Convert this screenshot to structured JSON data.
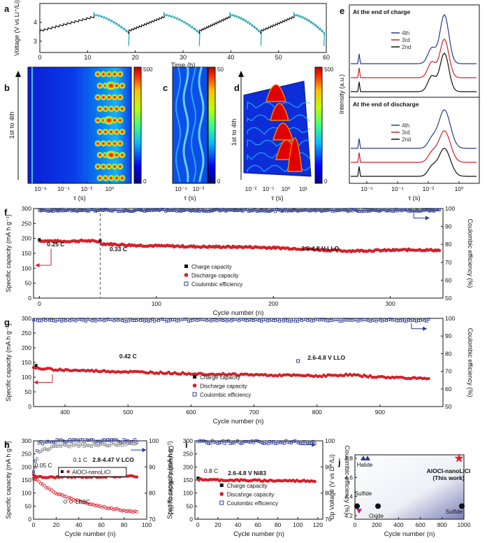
{
  "panel_letters": [
    "a",
    "b",
    "c",
    "d",
    "e",
    "f",
    "g",
    "h",
    "i",
    "j"
  ],
  "chart_data": [
    {
      "panel": "a",
      "type": "line",
      "xlabel": "Time (h)",
      "ylabel": "Voltage (V vs Li⁺/Li)",
      "xlim": [
        0,
        60
      ],
      "ylim": [
        2.4,
        5.0
      ],
      "xticks": [
        "0",
        "10",
        "20",
        "30",
        "40",
        "50",
        "60"
      ],
      "yticks": [
        "3",
        "4"
      ],
      "charge_color": "#111111",
      "discharge_color": "#1aa3b3",
      "cycles": [
        [
          0,
          11.3,
          18.6
        ],
        [
          18.6,
          26,
          33.4
        ],
        [
          33.4,
          39.8,
          46.3
        ],
        [
          46.3,
          53.2,
          59.5
        ]
      ]
    },
    {
      "panel": "b",
      "type": "heatmap",
      "xlabel": "τ (s)",
      "ylabel": "1st to 4th",
      "xticks": [
        "10⁻⁶",
        "10⁻⁴",
        "10⁻²",
        "10⁰"
      ],
      "colorbar_max": "500",
      "colorbar_min": "0"
    },
    {
      "panel": "c",
      "type": "heatmap",
      "xlabel": "τ (s)",
      "xticks": [
        "10⁻⁴",
        "10⁻³"
      ],
      "colorbar_max": "50",
      "colorbar_min": "0"
    },
    {
      "panel": "d",
      "type": "area",
      "xlabel": "τ (s)",
      "ylabel": "1st to 4th",
      "xticks": [
        "10⁻²",
        "10⁻¹",
        "10⁰",
        "10¹"
      ],
      "colorbar_max": "500",
      "colorbar_min": "0"
    },
    {
      "panel": "e",
      "type": "line",
      "xlabel": "τ (s)",
      "ylabel": "Intensity (a.u.)",
      "xticks": [
        "10⁻⁶",
        "10⁻⁴",
        "10⁻²",
        "10⁰"
      ],
      "subpanels": [
        {
          "title": "At the end of charge",
          "series": [
            {
              "name": "4th",
              "color": "#2b3a8c"
            },
            {
              "name": "3rd",
              "color": "#d0202a"
            },
            {
              "name": "2nd",
              "color": "#111111"
            }
          ]
        },
        {
          "title": "At the end of discharge",
          "series": [
            {
              "name": "4th",
              "color": "#2b3a8c"
            },
            {
              "name": "3rd",
              "color": "#d0202a"
            },
            {
              "name": "2nd",
              "color": "#111111"
            }
          ]
        }
      ]
    },
    {
      "panel": "f",
      "type": "scatter",
      "xlabel": "Cycle number (n)",
      "ylabel": "Specific capacity (mA h g⁻¹)",
      "y2label": "Coulombic efficiency (%)",
      "xlim": [
        -5,
        345
      ],
      "ylim": [
        0,
        300
      ],
      "y2lim": [
        50,
        100
      ],
      "xticks": [
        0,
        100,
        200,
        300
      ],
      "yticks": [
        0,
        50,
        100,
        150,
        200,
        250,
        300
      ],
      "y2ticks": [
        50,
        60,
        70,
        80,
        90,
        100
      ],
      "annotations": [
        "0.25 C",
        "0.33 C",
        "2.6-4.8 V LLO"
      ],
      "rate_change_cycle": 52,
      "legend": [
        "Charge capacity",
        "Discharge capacity",
        "Coulombic efficiency"
      ],
      "capacity_points": [
        [
          0,
          192
        ],
        [
          20,
          190
        ],
        [
          40,
          192
        ],
        [
          52,
          189
        ],
        [
          53,
          182
        ],
        [
          80,
          177
        ],
        [
          100,
          175
        ],
        [
          140,
          172
        ],
        [
          180,
          171
        ],
        [
          220,
          166
        ],
        [
          260,
          158
        ],
        [
          300,
          160
        ],
        [
          320,
          162
        ],
        [
          343,
          160
        ]
      ],
      "ce_mean": 99
    },
    {
      "panel": "g",
      "type": "scatter",
      "xlabel": "Cycle number (n)",
      "ylabel": "Specific capacity (mA h g⁻¹)",
      "y2label": "Coulombic efficiency (%)",
      "xlim": [
        350,
        1000
      ],
      "ylim": [
        0,
        300
      ],
      "y2lim": [
        50,
        100
      ],
      "xticks": [
        400,
        500,
        600,
        700,
        800,
        900
      ],
      "yticks": [
        0,
        50,
        100,
        150,
        200,
        250,
        300
      ],
      "y2ticks": [
        50,
        60,
        70,
        80,
        90,
        100
      ],
      "annotations": [
        "0.42 C",
        "2.6-4.8 V LLO"
      ],
      "legend": [
        "Charge capacity",
        "Discharge capacity",
        "Coulombic efficiency"
      ],
      "capacity_points": [
        [
          355,
          130
        ],
        [
          400,
          124
        ],
        [
          500,
          118
        ],
        [
          600,
          112
        ],
        [
          700,
          108
        ],
        [
          800,
          104
        ],
        [
          850,
          108
        ],
        [
          900,
          100
        ],
        [
          980,
          96
        ]
      ],
      "ce_mean": 99
    },
    {
      "panel": "h",
      "type": "scatter",
      "xlabel": "Cycle number (n)",
      "ylabel": "Specific capacity (mA h g⁻¹)",
      "y2label": "Coulombic efficiency (%)",
      "xlim": [
        0,
        100
      ],
      "ylim": [
        0,
        300
      ],
      "y2lim": [
        70,
        100
      ],
      "xticks": [
        0,
        20,
        40,
        60,
        80,
        100
      ],
      "yticks": [
        0,
        50,
        100,
        150,
        200,
        250,
        300
      ],
      "y2ticks": [
        70,
        80,
        90,
        100
      ],
      "annotations": [
        "0.05 C",
        "0.1 C",
        "2.8-4.47 V LCO"
      ],
      "series": [
        {
          "name": "AlOCl-nanoLiCl",
          "capacity": [
            [
              0,
              170
            ],
            [
              4,
              162
            ],
            [
              10,
              160
            ],
            [
              20,
              161
            ],
            [
              40,
              162
            ],
            [
              60,
              163
            ],
            [
              80,
              164
            ],
            [
              92,
              164
            ]
          ],
          "ce": [
            [
              0,
              88
            ],
            [
              4,
              99
            ],
            [
              20,
              100
            ],
            [
              92,
              100
            ]
          ]
        },
        {
          "name": "LPSC",
          "capacity": [
            [
              0,
              158
            ],
            [
              4,
              148
            ],
            [
              10,
              125
            ],
            [
              20,
              100
            ],
            [
              30,
              82
            ],
            [
              40,
              70
            ],
            [
              50,
              58
            ],
            [
              60,
              48
            ],
            [
              70,
              40
            ],
            [
              80,
              34
            ],
            [
              92,
              28
            ]
          ],
          "ce": [
            [
              0,
              85
            ],
            [
              4,
              96
            ],
            [
              20,
              98
            ],
            [
              92,
              99
            ]
          ]
        }
      ]
    },
    {
      "panel": "i",
      "type": "scatter",
      "xlabel": "Cycle number (n)",
      "ylabel": "Specific capacity (mA h g⁻¹)",
      "y2label": "Coulombic efficiency (%)",
      "xlim": [
        -3,
        125
      ],
      "ylim": [
        0,
        300
      ],
      "y2lim": [
        70,
        100
      ],
      "xticks": [
        0,
        20,
        40,
        60,
        80,
        100,
        120
      ],
      "yticks": [
        0,
        50,
        100,
        150,
        200,
        250,
        300
      ],
      "y2ticks": [
        70,
        80,
        90,
        100
      ],
      "annotations": [
        "0.8 C",
        "2.6-4.8 V Ni83"
      ],
      "legend": [
        "Charge capacity",
        "Discahrge capacity",
        "Coulombic efficiency"
      ],
      "capacity_points": [
        [
          0,
          155
        ],
        [
          5,
          152
        ],
        [
          20,
          150
        ],
        [
          60,
          148
        ],
        [
          100,
          147
        ],
        [
          118,
          147
        ]
      ],
      "ce_mean": 99.5
    },
    {
      "panel": "j",
      "type": "scatter",
      "xlabel": "Cycle number (n)",
      "ylabel": "Up Voltage (V vs Li⁺/Li)",
      "xlim": [
        0,
        1000
      ],
      "ylim": [
        4.2,
        4.8
      ],
      "xticks": [
        0,
        200,
        400,
        600,
        800,
        1000
      ],
      "yticks": [
        4.2,
        4.4,
        4.6,
        4.8
      ],
      "points": [
        {
          "label": "Halide",
          "x": 60,
          "y": 4.8,
          "shape": "triangle"
        },
        {
          "label": "",
          "x": 100,
          "y": 4.8,
          "shape": "triangle"
        },
        {
          "label": "Sulfide",
          "x": 0,
          "y": 4.3,
          "shape": "circle"
        },
        {
          "label": "",
          "x": 200,
          "y": 4.3,
          "shape": "circle"
        },
        {
          "label": "Sulfide",
          "x": 1000,
          "y": 4.3,
          "shape": "circle"
        },
        {
          "label": "Oxide",
          "x": 20,
          "y": 4.25,
          "shape": "invtriangle"
        },
        {
          "label": "AlOCl-nanoLiCl",
          "x": 1000,
          "y": 4.8,
          "shape": "star"
        }
      ],
      "highlight_note": "(This work)"
    }
  ]
}
